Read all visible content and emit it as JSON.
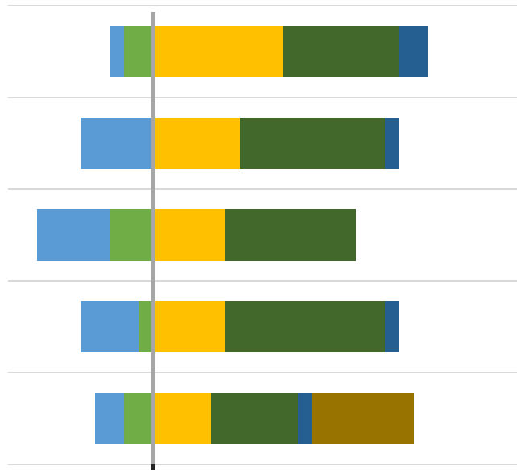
{
  "chart_data": {
    "type": "diverging_bar",
    "categories": [
      null,
      null,
      null,
      null,
      null
    ],
    "series": [
      {
        "color": "#70ad47",
        "values": [
          -2,
          0,
          -3,
          -1,
          -2
        ]
      },
      {
        "color": "#5b9bd5",
        "values": [
          -1,
          -5,
          -5,
          -4,
          -2
        ]
      },
      {
        "color": "#ffc000",
        "values": [
          9,
          6,
          5,
          5,
          4
        ]
      },
      {
        "color": "#43682b",
        "values": [
          8,
          10,
          9,
          11,
          6
        ]
      },
      {
        "color": "#255e91",
        "values": [
          2,
          1,
          0,
          1,
          1
        ]
      },
      {
        "color": "#997300",
        "values": [
          0,
          0,
          0,
          0,
          7
        ]
      }
    ],
    "xlim": [
      -10,
      25
    ],
    "grid": true
  }
}
